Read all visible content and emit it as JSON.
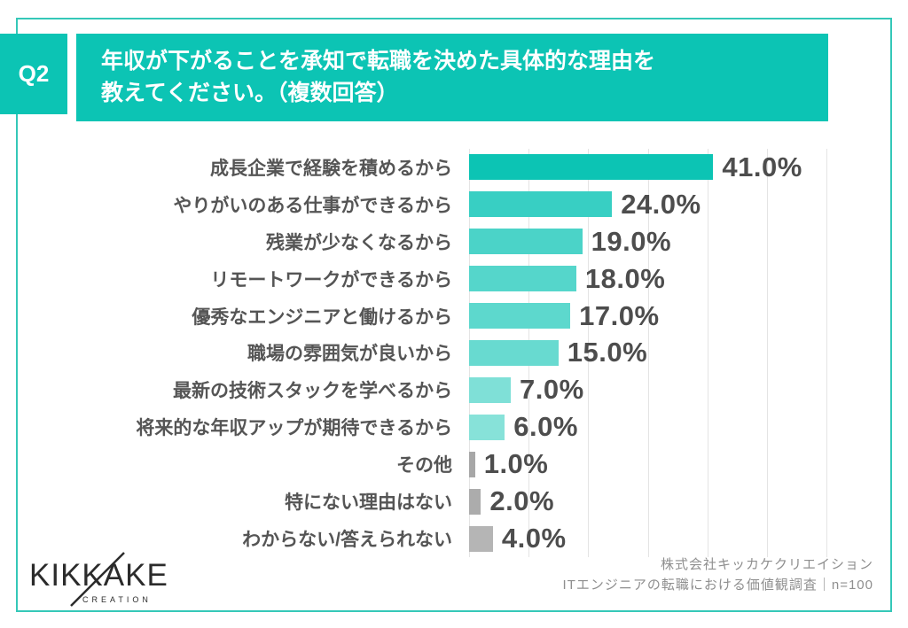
{
  "header": {
    "question_number": "Q2",
    "title_lines": [
      "年収が下がることを承知で転職を決めた具体的な理由を",
      "教えてください。（複数回答）"
    ]
  },
  "chart_data": {
    "type": "bar",
    "orientation": "horizontal",
    "title": "年収が下がることを承知で転職を決めた具体的な理由を教えてください。（複数回答）",
    "xlabel": "",
    "ylabel": "",
    "xlim": [
      0,
      60
    ],
    "grid": true,
    "gridline_step": 10,
    "unit": "%",
    "sample_note": "n=100",
    "categories": [
      "成長企業で経験を積めるから",
      "やりがいのある仕事ができるから",
      "残業が少なくなるから",
      "リモートワークができるから",
      "優秀なエンジニアと働けるから",
      "職場の雰囲気が良いから",
      "最新の技術スタックを学べるから",
      "将来的な年収アップが期待できるから",
      "その他",
      "特にない理由はない",
      "わからない/答えられない"
    ],
    "values": [
      41.0,
      24.0,
      19.0,
      18.0,
      17.0,
      15.0,
      7.0,
      6.0,
      1.0,
      2.0,
      4.0
    ],
    "value_labels": [
      "41.0%",
      "24.0%",
      "19.0%",
      "18.0%",
      "17.0%",
      "15.0%",
      "7.0%",
      "6.0%",
      "1.0%",
      "2.0%",
      "4.0%"
    ],
    "bar_colors": [
      "#0cc4b4",
      "#38cfc3",
      "#4bd3c8",
      "#55d6cb",
      "#5dd8cd",
      "#68dad0",
      "#7fe0d7",
      "#87e2d9",
      "#a7a7a7",
      "#acacac",
      "#b5b5b5"
    ],
    "legend": []
  },
  "footer": {
    "logo_text": "KIKKAKE",
    "logo_subtext": "CREATION",
    "attribution_lines": [
      "株式会社キッカケクリエイション",
      "ITエンジニアの転職における価値観調査｜n=100"
    ]
  },
  "colors": {
    "accent_teal": "#0cc4b4",
    "frame_border": "#35c8b8",
    "value_label": "#4d4d4d",
    "category_label": "#555555",
    "gridline": "#e4e4e4",
    "attribution": "#8f8f8f",
    "logo": "#2b2b2b"
  }
}
